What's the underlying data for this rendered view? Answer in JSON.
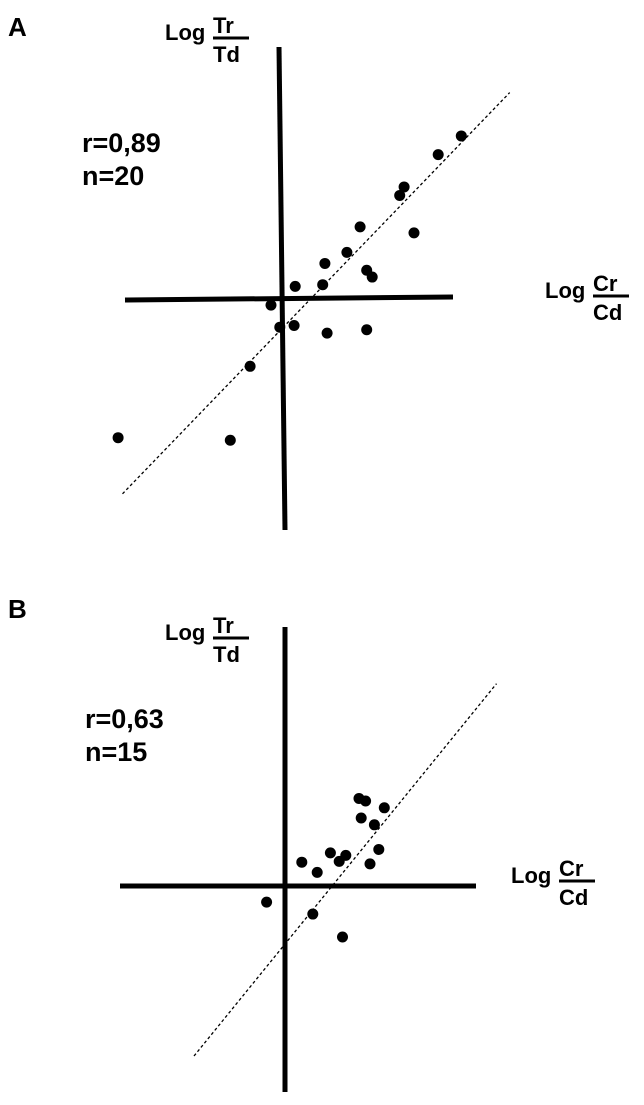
{
  "chart_data": [
    {
      "type": "scatter",
      "panel": "A",
      "xlabel": {
        "prefix": "Log",
        "numerator": "Cr",
        "denominator": "Cd"
      },
      "ylabel": {
        "prefix": "Log",
        "numerator": "Tr",
        "denominator": "Td"
      },
      "annotations": [
        "r=0,89",
        "n=20"
      ],
      "trendline": "dashed",
      "grid": false,
      "points": [
        {
          "x": -1.49,
          "y": -1.62
        },
        {
          "x": -0.47,
          "y": -1.65
        },
        {
          "x": -0.29,
          "y": -0.78
        },
        {
          "x": -0.1,
          "y": -0.06
        },
        {
          "x": -0.02,
          "y": -0.32
        },
        {
          "x": 0.11,
          "y": -0.3
        },
        {
          "x": 0.12,
          "y": 0.16
        },
        {
          "x": 0.37,
          "y": 0.18
        },
        {
          "x": 0.39,
          "y": 0.43
        },
        {
          "x": 0.41,
          "y": -0.39
        },
        {
          "x": 0.59,
          "y": 0.56
        },
        {
          "x": 0.71,
          "y": 0.86
        },
        {
          "x": 0.77,
          "y": 0.35
        },
        {
          "x": 0.77,
          "y": -0.35
        },
        {
          "x": 0.82,
          "y": 0.27
        },
        {
          "x": 1.07,
          "y": 1.23
        },
        {
          "x": 1.11,
          "y": 1.33
        },
        {
          "x": 1.2,
          "y": 0.79
        },
        {
          "x": 1.42,
          "y": 1.71
        },
        {
          "x": 1.63,
          "y": 1.93
        }
      ],
      "trend": [
        [
          -1.45,
          -2.28
        ],
        [
          2.07,
          2.44
        ]
      ]
    },
    {
      "type": "scatter",
      "panel": "B",
      "xlabel": {
        "prefix": "Log",
        "numerator": "Cr",
        "denominator": "Cd"
      },
      "ylabel": {
        "prefix": "Log",
        "numerator": "Tr",
        "denominator": "Td"
      },
      "annotations": [
        "r=0,63",
        "n=15"
      ],
      "trendline": "dashed",
      "grid": false,
      "points": [
        {
          "x": -0.14,
          "y": -0.19
        },
        {
          "x": 0.18,
          "y": 0.28
        },
        {
          "x": 0.28,
          "y": -0.33
        },
        {
          "x": 0.32,
          "y": 0.16
        },
        {
          "x": 0.44,
          "y": 0.39
        },
        {
          "x": 0.52,
          "y": 0.29
        },
        {
          "x": 0.55,
          "y": -0.6
        },
        {
          "x": 0.58,
          "y": 0.36
        },
        {
          "x": 0.7,
          "y": 1.03
        },
        {
          "x": 0.72,
          "y": 0.8
        },
        {
          "x": 0.76,
          "y": 1.0
        },
        {
          "x": 0.8,
          "y": 0.26
        },
        {
          "x": 0.84,
          "y": 0.72
        },
        {
          "x": 0.88,
          "y": 0.43
        },
        {
          "x": 0.93,
          "y": 0.92
        }
      ],
      "trend": [
        [
          -0.8,
          -2.0
        ],
        [
          1.95,
          2.38
        ]
      ]
    }
  ]
}
